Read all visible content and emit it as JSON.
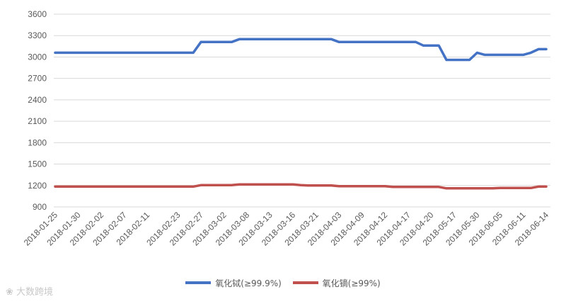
{
  "chart_data": {
    "type": "line",
    "x": [
      "2018-01-25",
      "2018-01-26",
      "2018-01-29",
      "2018-01-30",
      "2018-01-31",
      "2018-02-01",
      "2018-02-02",
      "2018-02-05",
      "2018-02-06",
      "2018-02-07",
      "2018-02-08",
      "2018-02-09",
      "2018-02-11",
      "2018-02-12",
      "2018-02-13",
      "2018-02-14",
      "2018-02-23",
      "2018-02-24",
      "2018-02-26",
      "2018-02-27",
      "2018-02-28",
      "2018-03-01",
      "2018-03-02",
      "2018-03-05",
      "2018-03-06",
      "2018-03-08",
      "2018-03-09",
      "2018-03-12",
      "2018-03-13",
      "2018-03-14",
      "2018-03-15",
      "2018-03-16",
      "2018-03-19",
      "2018-03-20",
      "2018-03-21",
      "2018-03-22",
      "2018-03-23",
      "2018-04-03",
      "2018-04-04",
      "2018-04-08",
      "2018-04-09",
      "2018-04-10",
      "2018-04-11",
      "2018-04-12",
      "2018-04-13",
      "2018-04-16",
      "2018-04-17",
      "2018-04-18",
      "2018-04-19",
      "2018-04-20",
      "2018-04-23",
      "2018-05-14",
      "2018-05-17",
      "2018-05-18",
      "2018-05-24",
      "2018-05-30",
      "2018-05-31",
      "2018-06-01",
      "2018-06-05",
      "2018-06-06",
      "2018-06-07",
      "2018-06-11",
      "2018-06-12",
      "2018-06-13",
      "2018-06-14"
    ],
    "x_tick_labels": [
      "2018-01-25",
      "2018-01-30",
      "2018-02-02",
      "2018-02-07",
      "2018-02-11",
      "2018-02-23",
      "2018-02-27",
      "2018-03-02",
      "2018-03-08",
      "2018-03-13",
      "2018-03-16",
      "2018-03-21",
      "2018-04-03",
      "2018-04-09",
      "2018-04-12",
      "2018-04-17",
      "2018-04-20",
      "2018-05-17",
      "2018-05-30",
      "2018-06-05",
      "2018-06-11",
      "2018-06-14"
    ],
    "ylim": [
      900,
      3600
    ],
    "y_ticks": [
      900,
      1200,
      1500,
      1800,
      2100,
      2400,
      2700,
      3000,
      3300,
      3600
    ],
    "grid": "horizontal",
    "legend_position": "bottom",
    "series": [
      {
        "name": "氧化铽(≥99.9%)",
        "color": "#4472c4",
        "values": [
          3060,
          3060,
          3060,
          3060,
          3060,
          3060,
          3060,
          3060,
          3060,
          3060,
          3060,
          3060,
          3060,
          3060,
          3060,
          3060,
          3060,
          3060,
          3060,
          3210,
          3210,
          3210,
          3210,
          3210,
          3250,
          3250,
          3250,
          3250,
          3250,
          3250,
          3250,
          3250,
          3250,
          3250,
          3250,
          3250,
          3250,
          3210,
          3210,
          3210,
          3210,
          3210,
          3210,
          3210,
          3210,
          3210,
          3210,
          3210,
          3160,
          3160,
          3160,
          2960,
          2960,
          2960,
          2960,
          3060,
          3030,
          3030,
          3030,
          3030,
          3030,
          3030,
          3060,
          3110,
          3110
        ]
      },
      {
        "name": "氧化镝(≥99%)",
        "color": "#c0504d",
        "values": [
          1185,
          1185,
          1185,
          1185,
          1185,
          1185,
          1185,
          1185,
          1185,
          1185,
          1185,
          1185,
          1185,
          1185,
          1185,
          1185,
          1185,
          1185,
          1185,
          1205,
          1205,
          1205,
          1205,
          1205,
          1215,
          1215,
          1215,
          1215,
          1215,
          1215,
          1215,
          1215,
          1205,
          1200,
          1200,
          1200,
          1200,
          1190,
          1190,
          1190,
          1190,
          1190,
          1190,
          1190,
          1180,
          1180,
          1180,
          1180,
          1180,
          1180,
          1180,
          1160,
          1160,
          1160,
          1160,
          1160,
          1160,
          1160,
          1165,
          1165,
          1165,
          1165,
          1165,
          1185,
          1185
        ]
      }
    ]
  },
  "watermark": "大数跨境"
}
